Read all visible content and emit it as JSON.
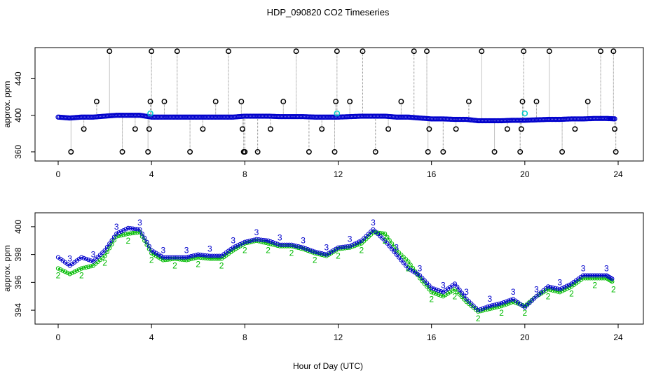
{
  "title": "HDP_090820  CO2 Timeseries",
  "xlabel": "Hour of Day (UTC)",
  "colors": {
    "blue": "#0000cc",
    "green": "#00bb00",
    "cyan": "#00cccc",
    "black": "#000000",
    "gray": "#888888"
  },
  "chart_data": [
    {
      "type": "scatter",
      "ylabel": "approx. ppm",
      "xlim": [
        0,
        24
      ],
      "ylim": [
        350,
        474
      ],
      "xticks": [
        0,
        4,
        8,
        12,
        16,
        20,
        24
      ],
      "yticks": [
        360,
        400,
        440
      ],
      "series": [
        {
          "marker": "blue-circle",
          "x": [
            0,
            0.5,
            1,
            1.5,
            2,
            2.5,
            3,
            3.5,
            4,
            4.5,
            5,
            5.5,
            6,
            6.5,
            7,
            7.5,
            8,
            8.5,
            9,
            9.5,
            10,
            10.5,
            11,
            11.5,
            12,
            12.5,
            13,
            13.5,
            14,
            14.5,
            15,
            15.5,
            16,
            16.5,
            17,
            17.5,
            18,
            18.5,
            19,
            19.5,
            20,
            20.5,
            21,
            21.5,
            22,
            22.5,
            23,
            23.5,
            23.9
          ],
          "y": [
            398,
            397,
            398,
            398,
            399,
            400,
            400,
            400,
            398,
            398,
            398,
            398,
            398,
            398,
            398,
            398,
            399,
            399,
            399,
            398.5,
            398.5,
            398.5,
            398,
            398,
            398,
            398.5,
            399,
            399,
            399,
            398,
            398,
            397,
            396,
            396,
            395.5,
            395.5,
            394,
            394,
            394,
            394.5,
            394.5,
            395,
            395.5,
            395.5,
            396,
            396,
            396.5,
            396.5,
            396
          ]
        },
        {
          "marker": "black-circle",
          "x": [
            0.55,
            1.1,
            1.65,
            2.2,
            2.75,
            3.3,
            3.85,
            3.9,
            3.95,
            4.0,
            4.55,
            5.1,
            5.65,
            6.2,
            6.75,
            7.3,
            7.85,
            7.9,
            7.95,
            8.0,
            8.55,
            9.1,
            9.65,
            10.2,
            10.75,
            11.3,
            11.85,
            11.9,
            11.95,
            12.5,
            13.05,
            13.6,
            14.15,
            14.7,
            15.25,
            15.8,
            15.85,
            15.9,
            16.5,
            17.05,
            17.6,
            18.15,
            18.7,
            19.25,
            19.8,
            19.85,
            19.9,
            19.95,
            20.5,
            21.05,
            21.6,
            22.15,
            22.7,
            23.25,
            23.8,
            23.85,
            23.9
          ],
          "y": [
            360,
            385,
            415,
            470,
            360,
            385,
            360,
            385,
            415,
            470,
            415,
            470,
            360,
            385,
            415,
            470,
            415,
            385,
            360,
            360,
            360,
            385,
            415,
            470,
            360,
            385,
            360,
            415,
            470,
            415,
            470,
            360,
            385,
            415,
            470,
            470,
            360,
            385,
            360,
            385,
            415,
            470,
            360,
            385,
            360,
            385,
            415,
            470,
            415,
            470,
            360,
            385,
            415,
            470,
            470,
            385,
            360
          ]
        },
        {
          "marker": "cyan-circle",
          "x": [
            3.95,
            11.95,
            20.0
          ],
          "y": [
            402,
            402,
            402
          ]
        }
      ]
    },
    {
      "type": "line",
      "ylabel": "approx. ppm",
      "xlim": [
        0,
        24
      ],
      "ylim": [
        393,
        401
      ],
      "xticks": [
        0,
        4,
        8,
        12,
        16,
        20,
        24
      ],
      "yticks": [
        394,
        396,
        398,
        400
      ],
      "series": [
        {
          "marker": "3",
          "x": [
            0,
            0.5,
            1,
            1.5,
            2,
            2.5,
            3,
            3.5,
            4,
            4.5,
            5,
            5.5,
            6,
            6.5,
            7,
            7.5,
            8,
            8.5,
            9,
            9.5,
            10,
            10.5,
            11,
            11.5,
            12,
            12.5,
            13,
            13.5,
            14,
            14.5,
            15,
            15.5,
            16,
            16.5,
            17,
            17.5,
            18,
            18.5,
            19,
            19.5,
            20,
            20.5,
            21,
            21.5,
            22,
            22.5,
            23,
            23.5,
            23.8
          ],
          "y": [
            397.8,
            397.2,
            397.8,
            397.5,
            398.3,
            399.5,
            399.9,
            399.8,
            398.3,
            397.8,
            397.8,
            397.8,
            398.0,
            397.9,
            397.9,
            398.5,
            398.9,
            399.1,
            399.0,
            398.7,
            398.7,
            398.5,
            398.2,
            398.0,
            398.5,
            398.6,
            399.0,
            399.8,
            399.0,
            398.0,
            397.0,
            396.5,
            395.6,
            395.3,
            395.9,
            394.8,
            394.0,
            394.3,
            394.5,
            394.8,
            394.2,
            395.0,
            395.7,
            395.5,
            395.9,
            396.5,
            396.5,
            396.5,
            396.2
          ]
        },
        {
          "marker": "2",
          "x": [
            0,
            0.5,
            1,
            1.5,
            2,
            2.5,
            3,
            3.5,
            4,
            4.5,
            5,
            5.5,
            6,
            6.5,
            7,
            7.5,
            8,
            8.5,
            9,
            9.5,
            10,
            10.5,
            11,
            11.5,
            12,
            12.5,
            13,
            13.5,
            14,
            14.5,
            15,
            15.5,
            16,
            16.5,
            17,
            17.5,
            18,
            18.5,
            19,
            19.5,
            20,
            20.5,
            21,
            21.5,
            22,
            22.5,
            23,
            23.5,
            23.8
          ],
          "y": [
            397.0,
            396.6,
            397.0,
            397.2,
            397.9,
            399.3,
            399.5,
            399.6,
            398.1,
            397.6,
            397.7,
            397.6,
            397.8,
            397.7,
            397.7,
            398.3,
            398.8,
            399.0,
            398.8,
            398.6,
            398.6,
            398.4,
            398.1,
            397.9,
            398.4,
            398.5,
            398.8,
            399.6,
            399.5,
            398.3,
            397.5,
            396.3,
            395.3,
            395.0,
            395.5,
            394.6,
            393.9,
            394.1,
            394.3,
            394.6,
            394.3,
            395.0,
            395.5,
            395.3,
            395.7,
            396.3,
            396.3,
            396.3,
            396.0
          ]
        }
      ]
    }
  ]
}
